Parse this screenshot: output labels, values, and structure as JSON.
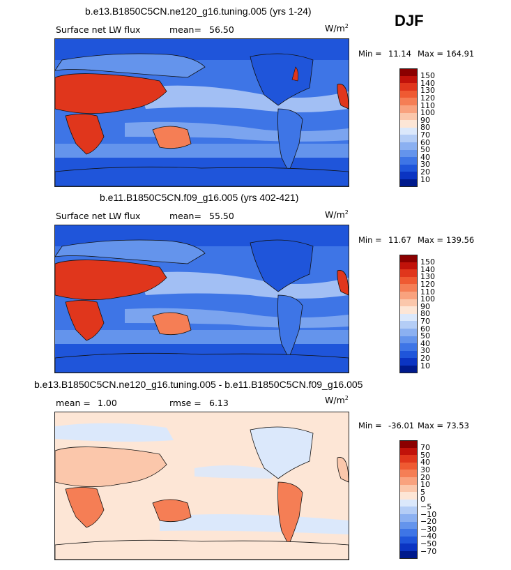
{
  "season": "DJF",
  "panels": [
    {
      "title": "b.e13.B1850C5CN.ne120_g16.tuning.005 (yrs 1-24)",
      "left_label": "Surface net LW flux",
      "stat_label": "mean=",
      "stat_value": "56.50",
      "units_base": "W/m",
      "units_exp": "2",
      "min_label": "Min =",
      "min_value": "11.14",
      "max_label": "Max =",
      "max_value": "164.91",
      "colorbar": {
        "ticks": [
          "150",
          "140",
          "130",
          "120",
          "110",
          "100",
          "90",
          "80",
          "70",
          "60",
          "50",
          "40",
          "30",
          "20",
          "10"
        ],
        "colors": [
          "#8b0000",
          "#c1120a",
          "#e0361c",
          "#ef5a32",
          "#f57e55",
          "#f9a27e",
          "#fbc7ab",
          "#fde6d6",
          "#dbe8fb",
          "#b4cdf6",
          "#8bb0f1",
          "#6494ec",
          "#3e75e6",
          "#1f55da",
          "#0b34c2",
          "#001a8c"
        ]
      }
    },
    {
      "title": "b.e11.B1850C5CN.f09_g16.005 (yrs 402-421)",
      "left_label": "Surface net LW flux",
      "stat_label": "mean=",
      "stat_value": "55.50",
      "units_base": "W/m",
      "units_exp": "2",
      "min_label": "Min =",
      "min_value": "11.67",
      "max_label": "Max =",
      "max_value": "139.56",
      "colorbar": {
        "ticks": [
          "150",
          "140",
          "130",
          "120",
          "110",
          "100",
          "90",
          "80",
          "70",
          "60",
          "50",
          "40",
          "30",
          "20",
          "10"
        ],
        "colors": [
          "#8b0000",
          "#c1120a",
          "#e0361c",
          "#ef5a32",
          "#f57e55",
          "#f9a27e",
          "#fbc7ab",
          "#fde6d6",
          "#dbe8fb",
          "#b4cdf6",
          "#8bb0f1",
          "#6494ec",
          "#3e75e6",
          "#1f55da",
          "#0b34c2",
          "#001a8c"
        ]
      }
    },
    {
      "title": "b.e13.B1850C5CN.ne120_g16.tuning.005 - b.e11.B1850C5CN.f09_g16.005",
      "left_label": "mean =",
      "left_value": "1.00",
      "stat_label": "rmse =",
      "stat_value": "6.13",
      "units_base": "W/m",
      "units_exp": "2",
      "min_label": "Min =",
      "min_value": "-36.01",
      "max_label": "Max =",
      "max_value": "73.53",
      "colorbar": {
        "ticks": [
          "70",
          "50",
          "40",
          "30",
          "20",
          "10",
          "5",
          "0",
          "−5",
          "−10",
          "−20",
          "−30",
          "−40",
          "−50",
          "−70"
        ],
        "colors": [
          "#8b0000",
          "#c1120a",
          "#e0361c",
          "#ef5a32",
          "#f57e55",
          "#f9a27e",
          "#fbc7ab",
          "#fde6d6",
          "#dbe8fb",
          "#b4cdf6",
          "#8bb0f1",
          "#6494ec",
          "#3e75e6",
          "#1f55da",
          "#0b34c2",
          "#001a8c"
        ]
      }
    }
  ],
  "map_colors": {
    "ocean_a": "#3e75e6",
    "ocean_b": "#6494ec",
    "band_light": "#b4cdf6",
    "polar": "#1f55da",
    "hot": "#e0361c",
    "warm": "#f57e55",
    "diff_bg": "#fde6d6",
    "diff_blue": "#dbe8fb",
    "diff_warm": "#f9a27e"
  }
}
